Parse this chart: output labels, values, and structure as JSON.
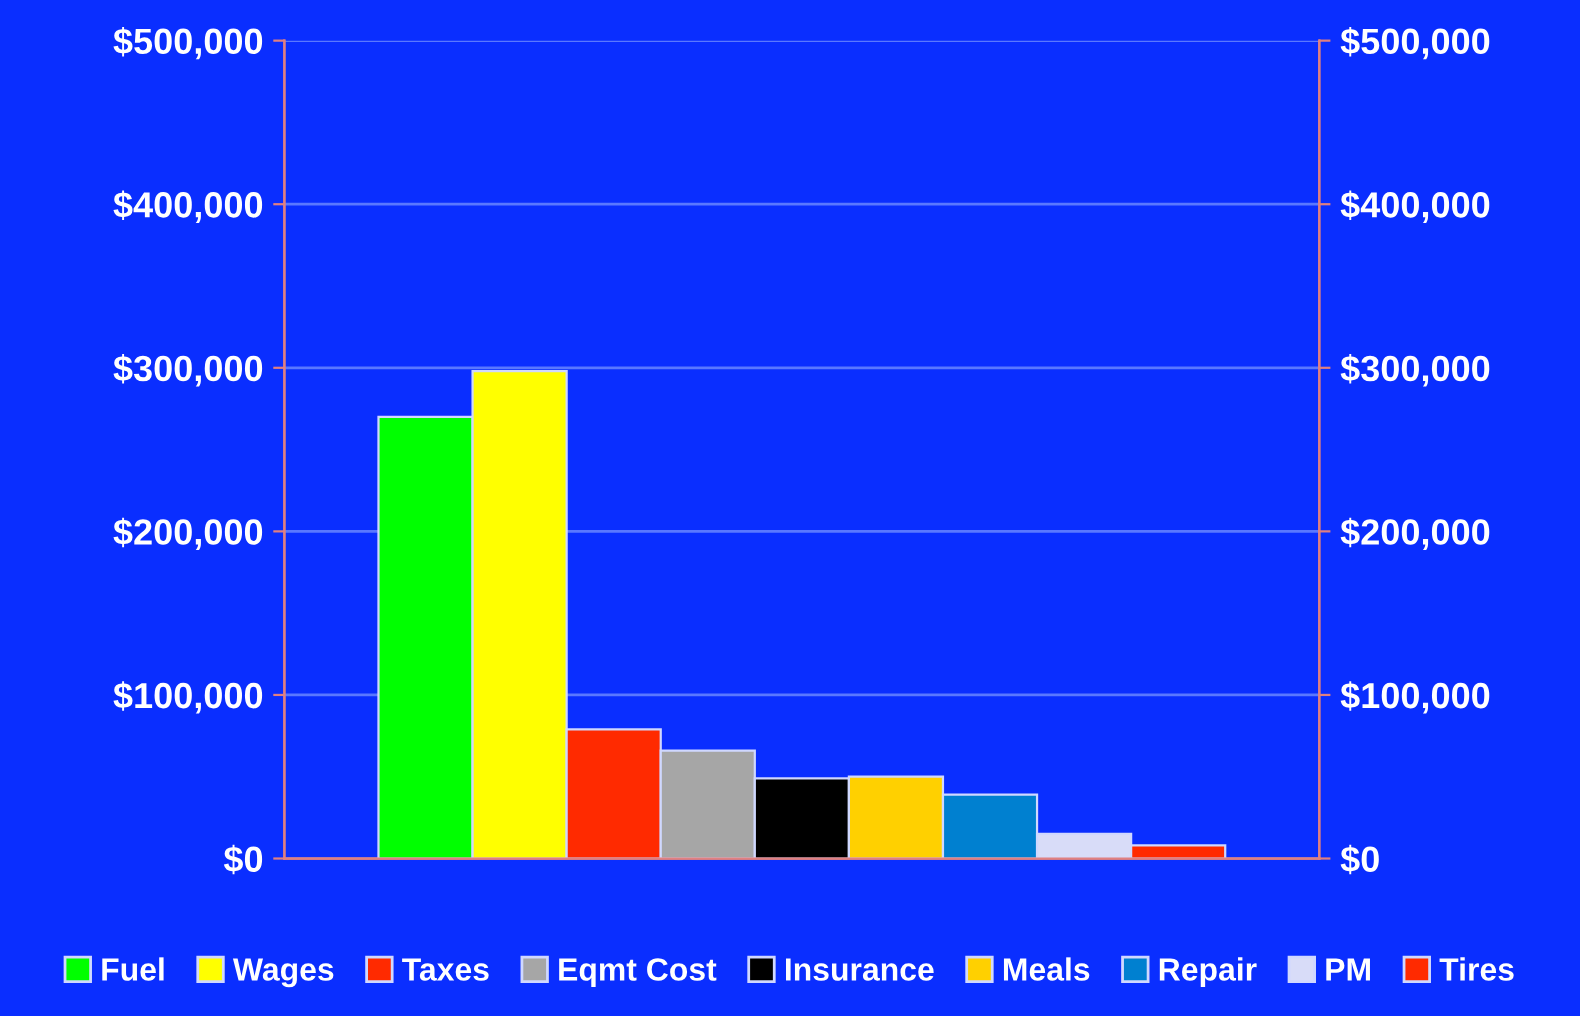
{
  "chart_data": {
    "type": "bar",
    "categories": [
      null
    ],
    "series": [
      {
        "name": "Fuel",
        "color": "#00ff00",
        "values": [
          270000
        ]
      },
      {
        "name": "Wages",
        "color": "#ffff00",
        "values": [
          298000
        ]
      },
      {
        "name": "Taxes",
        "color": "#ff2a00",
        "values": [
          79000
        ]
      },
      {
        "name": "Eqmt Cost",
        "color": "#a6a6a6",
        "values": [
          66000
        ]
      },
      {
        "name": "Insurance",
        "color": "#000000",
        "values": [
          49000
        ]
      },
      {
        "name": "Meals",
        "color": "#ffd000",
        "values": [
          50000
        ]
      },
      {
        "name": "Repair",
        "color": "#0080d0",
        "values": [
          39000
        ]
      },
      {
        "name": "PM",
        "color": "#d8dcf8",
        "values": [
          15000
        ]
      },
      {
        "name": "Tires",
        "color": "#ff2a00",
        "values": [
          8000
        ]
      }
    ],
    "ylim": [
      0,
      500000
    ],
    "yticks": [
      {
        "value": 0,
        "label": "$0"
      },
      {
        "value": 100000,
        "label": "$100,000"
      },
      {
        "value": 200000,
        "label": "$200,000"
      },
      {
        "value": 300000,
        "label": "$300,000"
      },
      {
        "value": 400000,
        "label": "$400,000"
      },
      {
        "value": 500000,
        "label": "$500,000"
      }
    ],
    "y2lim": [
      0,
      500000
    ],
    "y2ticks": [
      {
        "value": 0,
        "label": "$0"
      },
      {
        "value": 100000,
        "label": "$100,000"
      },
      {
        "value": 200000,
        "label": "$200,000"
      },
      {
        "value": 300000,
        "label": "$300,000"
      },
      {
        "value": 400000,
        "label": "$400,000"
      },
      {
        "value": 500000,
        "label": "$500,000"
      }
    ],
    "grid": "y",
    "legend": "bottom"
  }
}
